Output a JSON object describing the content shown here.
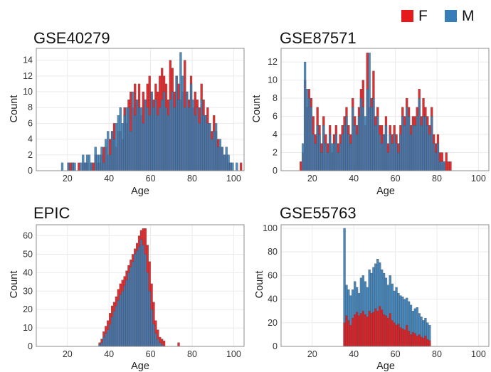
{
  "colors": {
    "F": "#e41a1c",
    "M": "#377eb8",
    "grid": "#ebebeb",
    "panel_border": "#8c8c8c",
    "bar_edge": "#4d4d4d"
  },
  "legend": {
    "items": [
      {
        "key": "F",
        "label": "F"
      },
      {
        "key": "M",
        "label": "M"
      }
    ],
    "position": "top-right"
  },
  "chart_data": [
    {
      "type": "histogram",
      "title": "GSE40279",
      "xlabel": "Age",
      "ylabel": "Count",
      "xlim": [
        5,
        105
      ],
      "ylim": [
        0,
        15.5
      ],
      "xticks": [
        20,
        40,
        60,
        80,
        100
      ],
      "yticks": [
        0,
        2,
        4,
        6,
        8,
        10,
        12,
        14
      ],
      "bin_width": 1,
      "bin_start": 17,
      "overlay": "M_over_F",
      "series": [
        {
          "name": "F",
          "values": [
            0,
            0,
            0,
            1,
            1,
            1,
            0,
            0,
            1,
            0,
            1,
            1,
            1,
            0,
            1,
            1,
            2,
            1,
            1,
            2,
            3,
            3,
            2,
            4,
            5,
            6,
            3,
            5,
            5,
            4,
            8,
            6,
            9,
            10,
            8,
            11,
            9,
            11,
            7,
            10,
            9,
            11,
            12,
            10,
            9,
            11,
            10,
            12,
            13,
            12,
            11,
            9,
            14,
            13,
            10,
            12,
            11,
            9,
            10,
            14,
            10,
            9,
            12,
            8,
            10,
            9,
            8,
            11,
            9,
            7,
            8,
            6,
            5,
            7,
            5,
            4,
            3,
            3,
            2,
            2,
            1,
            1,
            0,
            0,
            0,
            0,
            1
          ]
        },
        {
          "name": "M",
          "values": [
            1,
            0,
            0,
            1,
            0,
            1,
            1,
            0,
            0,
            1,
            2,
            1,
            2,
            2,
            1,
            0,
            3,
            2,
            2,
            3,
            1,
            4,
            5,
            2,
            5,
            4,
            6,
            7,
            8,
            6,
            7,
            8,
            8,
            5,
            10,
            7,
            9,
            8,
            8,
            6,
            9,
            8,
            7,
            10,
            8,
            9,
            7,
            8,
            9,
            10,
            8,
            7,
            9,
            10,
            8,
            12,
            9,
            15,
            12,
            8,
            10,
            8,
            11,
            9,
            7,
            8,
            6,
            9,
            7,
            7,
            6,
            6,
            4,
            5,
            6,
            3,
            4,
            3,
            2,
            3,
            2,
            1,
            1,
            0,
            1,
            0,
            0
          ]
        }
      ]
    },
    {
      "type": "histogram",
      "title": "GSE87571",
      "xlabel": "Age",
      "ylabel": "Count",
      "xlim": [
        5,
        105
      ],
      "ylim": [
        0,
        13.5
      ],
      "xticks": [
        20,
        40,
        60,
        80,
        100
      ],
      "yticks": [
        0,
        2,
        4,
        6,
        8,
        10,
        12
      ],
      "bin_width": 1,
      "bin_start": 14,
      "overlay": "M_over_F",
      "series": [
        {
          "name": "F",
          "values": [
            1,
            2,
            10,
            7,
            9,
            8,
            6,
            4,
            7,
            5,
            3,
            6,
            4,
            3,
            5,
            2,
            4,
            5,
            3,
            4,
            5,
            6,
            7,
            5,
            4,
            8,
            6,
            5,
            7,
            9,
            10,
            5,
            13,
            7,
            8,
            11,
            6,
            7,
            5,
            5,
            4,
            6,
            3,
            5,
            4,
            5,
            4,
            3,
            5,
            7,
            6,
            8,
            7,
            5,
            6,
            6,
            7,
            9,
            6,
            8,
            7,
            6,
            5,
            7,
            4,
            3,
            4,
            2,
            2,
            1,
            2,
            1,
            1,
            0
          ]
        },
        {
          "name": "M",
          "values": [
            0,
            3,
            12,
            9,
            8,
            7,
            4,
            3,
            5,
            4,
            2,
            5,
            3,
            2,
            4,
            3,
            3,
            4,
            2,
            3,
            4,
            5,
            6,
            4,
            3,
            7,
            5,
            4,
            6,
            8,
            7,
            6,
            9,
            13,
            7,
            8,
            5,
            6,
            4,
            3,
            4,
            5,
            2,
            4,
            3,
            4,
            3,
            2,
            4,
            6,
            5,
            7,
            6,
            4,
            5,
            5,
            6,
            8,
            5,
            6,
            6,
            5,
            4,
            6,
            3,
            2,
            3,
            1,
            1,
            1,
            0,
            0,
            0,
            0
          ]
        }
      ]
    },
    {
      "type": "histogram",
      "title": "EPIC",
      "xlabel": "Age",
      "ylabel": "Count",
      "xlim": [
        5,
        105
      ],
      "ylim": [
        0,
        66
      ],
      "xticks": [
        20,
        40,
        60,
        80,
        100
      ],
      "yticks": [
        0,
        10,
        20,
        30,
        40,
        50,
        60
      ],
      "bin_width": 1,
      "bin_start": 35,
      "overlay": "M_over_F",
      "series": [
        {
          "name": "F",
          "values": [
            2,
            4,
            8,
            11,
            14,
            18,
            22,
            24,
            27,
            31,
            34,
            36,
            38,
            41,
            44,
            47,
            50,
            53,
            56,
            60,
            63,
            64,
            64,
            55,
            46,
            34,
            24,
            14,
            9,
            5,
            4,
            3,
            0,
            0,
            0,
            0,
            0,
            0,
            2
          ]
        },
        {
          "name": "M",
          "values": [
            1,
            2,
            5,
            7,
            9,
            12,
            16,
            19,
            22,
            25,
            28,
            30,
            33,
            36,
            40,
            43,
            46,
            50,
            52,
            54,
            58,
            55,
            50,
            40,
            30,
            20,
            12,
            7,
            4,
            2,
            1,
            0,
            0,
            0,
            0,
            0,
            0,
            0,
            0
          ]
        }
      ]
    },
    {
      "type": "histogram",
      "title": "GSE55763",
      "xlabel": "Age",
      "ylabel": "Count",
      "xlim": [
        5,
        105
      ],
      "ylim": [
        0,
        103
      ],
      "xticks": [
        20,
        40,
        60,
        80,
        100
      ],
      "yticks": [
        0,
        20,
        40,
        60,
        80,
        100
      ],
      "bin_width": 1,
      "bin_start": 35,
      "overlay": "F_over_M",
      "series": [
        {
          "name": "M",
          "values": [
            100,
            52,
            48,
            43,
            48,
            55,
            50,
            45,
            58,
            60,
            55,
            50,
            65,
            62,
            67,
            70,
            74,
            71,
            65,
            62,
            58,
            52,
            60,
            53,
            47,
            50,
            45,
            43,
            42,
            40,
            41,
            38,
            35,
            30,
            32,
            33,
            28,
            25,
            22,
            24,
            20,
            18
          ]
        },
        {
          "name": "F",
          "values": [
            20,
            26,
            22,
            18,
            24,
            27,
            29,
            26,
            28,
            30,
            27,
            25,
            30,
            28,
            29,
            32,
            30,
            34,
            31,
            27,
            26,
            24,
            28,
            22,
            20,
            18,
            19,
            16,
            15,
            14,
            18,
            13,
            10,
            12,
            11,
            9,
            10,
            8,
            7,
            9,
            6,
            5
          ]
        }
      ]
    }
  ]
}
